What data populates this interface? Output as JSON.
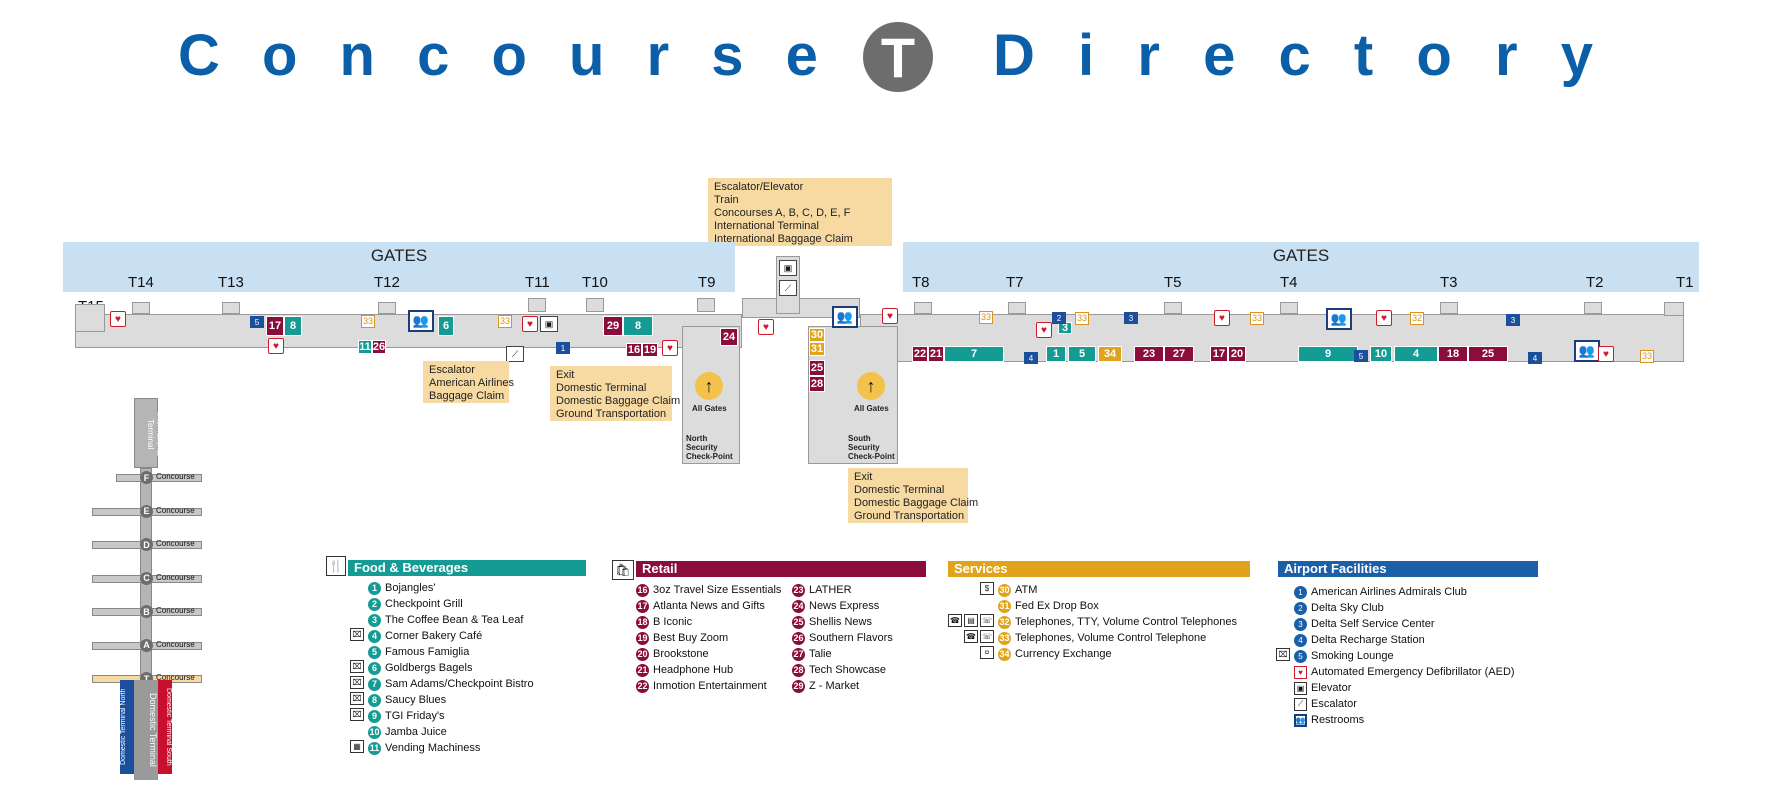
{
  "title": {
    "left": "Concourse",
    "badge": "T",
    "right": "Directory"
  },
  "gates": {
    "left_label": "GATES",
    "right_label": "GATES",
    "numbers": [
      "T15",
      "T14",
      "T13",
      "T12",
      "T11",
      "T10",
      "T9",
      "T8",
      "T7",
      "T5",
      "T4",
      "T3",
      "T2",
      "T1"
    ]
  },
  "info_boxes": {
    "top": [
      "Escalator/Elevator",
      "Train",
      "Concourses A, B, C, D, E, F",
      "International Terminal",
      "International Baggage Claim"
    ],
    "escalator": [
      "Escalator",
      "American Airlines",
      "Baggage Claim"
    ],
    "exit_north": [
      "Exit",
      "Domestic Terminal",
      "Domestic Baggage Claim",
      "Ground Transportation"
    ],
    "exit_south": [
      "Exit",
      "Domestic Terminal",
      "Domestic Baggage Claim",
      "Ground Transportation"
    ]
  },
  "security": {
    "north": [
      "North",
      "Security",
      "Check-Point"
    ],
    "south": [
      "South",
      "Security",
      "Check-Point"
    ],
    "all_gates": "All Gates"
  },
  "mini_map": {
    "international": "International Terminal",
    "concourses": [
      {
        "letter": "F",
        "label": "Concourse"
      },
      {
        "letter": "E",
        "label": "Concourse"
      },
      {
        "letter": "D",
        "label": "Concourse"
      },
      {
        "letter": "C",
        "label": "Concourse"
      },
      {
        "letter": "B",
        "label": "Concourse"
      },
      {
        "letter": "A",
        "label": "Concourse"
      },
      {
        "letter": "T",
        "label": "Concourse"
      }
    ],
    "north": "Domestic Terminal North",
    "center": "Domestic Terminal",
    "south": "Domestic Terminal South"
  },
  "legend": {
    "food": {
      "title": "Food & Beverages",
      "color": "#139b94",
      "items": [
        {
          "n": "1",
          "label": "Bojangles'"
        },
        {
          "n": "2",
          "label": "Checkpoint Grill"
        },
        {
          "n": "3",
          "label": "The Coffee Bean & Tea Leaf"
        },
        {
          "n": "4",
          "label": "Corner Bakery Café"
        },
        {
          "n": "5",
          "label": "Famous Famiglia"
        },
        {
          "n": "6",
          "label": "Goldbergs Bagels"
        },
        {
          "n": "7",
          "label": "Sam Adams/Checkpoint Bistro"
        },
        {
          "n": "8",
          "label": "Saucy Blues"
        },
        {
          "n": "9",
          "label": "TGI Friday's"
        },
        {
          "n": "10",
          "label": "Jamba Juice"
        },
        {
          "n": "11",
          "label": "Vending Machiness"
        }
      ]
    },
    "retail": {
      "title": "Retail",
      "color": "#8b0d3b",
      "col1": [
        {
          "n": "16",
          "label": "3oz Travel Size Essentials"
        },
        {
          "n": "17",
          "label": "Atlanta News and Gifts"
        },
        {
          "n": "18",
          "label": "B Iconic"
        },
        {
          "n": "19",
          "label": "Best Buy Zoom"
        },
        {
          "n": "20",
          "label": "Brookstone"
        },
        {
          "n": "21",
          "label": "Headphone Hub"
        },
        {
          "n": "22",
          "label": "Inmotion Entertainment"
        }
      ],
      "col2": [
        {
          "n": "23",
          "label": "LATHER"
        },
        {
          "n": "24",
          "label": "News Express"
        },
        {
          "n": "25",
          "label": "Shellis News"
        },
        {
          "n": "26",
          "label": "Southern Flavors"
        },
        {
          "n": "27",
          "label": "Talie"
        },
        {
          "n": "28",
          "label": "Tech Showcase"
        },
        {
          "n": "29",
          "label": "Z - Market"
        }
      ]
    },
    "services": {
      "title": "Services",
      "color": "#e0a41c",
      "items": [
        {
          "n": "30",
          "label": "ATM"
        },
        {
          "n": "31",
          "label": "Fed Ex Drop Box"
        },
        {
          "n": "32",
          "label": "Telephones, TTY, Volume Control Telephones"
        },
        {
          "n": "33",
          "label": "Telephones, Volume Control Telephone"
        },
        {
          "n": "34",
          "label": "Currency Exchange"
        }
      ]
    },
    "facilities": {
      "title": "Airport Facilities",
      "color": "#1b5fa8",
      "items": [
        {
          "n": "1",
          "label": "American Airlines Admirals Club",
          "icon": "star-icon"
        },
        {
          "n": "2",
          "label": "Delta Sky Club",
          "icon": "star-icon"
        },
        {
          "n": "3",
          "label": "Delta Self Service Center",
          "icon": "star-icon"
        },
        {
          "n": "4",
          "label": "Delta Recharge Station",
          "icon": "star-icon"
        },
        {
          "n": "5",
          "label": "Smoking Lounge",
          "icon": "star-icon"
        },
        {
          "n": "",
          "label": "Automated Emergency Defibrillator (AED)",
          "icon": "aed-icon"
        },
        {
          "n": "",
          "label": "Elevator",
          "icon": "elevator-icon"
        },
        {
          "n": "",
          "label": "Escalator",
          "icon": "escalator-icon"
        },
        {
          "n": "",
          "label": "Restrooms",
          "icon": "restroom-icon"
        }
      ]
    }
  },
  "map_units": [
    {
      "n": "17",
      "c": "maroon"
    },
    {
      "n": "8",
      "c": "teal"
    },
    {
      "n": "6",
      "c": "teal"
    },
    {
      "n": "11",
      "c": "teal"
    },
    {
      "n": "26",
      "c": "maroon"
    },
    {
      "n": "29",
      "c": "maroon"
    },
    {
      "n": "8",
      "c": "teal"
    },
    {
      "n": "16",
      "c": "maroon"
    },
    {
      "n": "19",
      "c": "maroon"
    },
    {
      "n": "24",
      "c": "maroon"
    },
    {
      "n": "30",
      "c": "amber"
    },
    {
      "n": "31",
      "c": "amber"
    },
    {
      "n": "25",
      "c": "maroon"
    },
    {
      "n": "28",
      "c": "maroon"
    },
    {
      "n": "22",
      "c": "maroon"
    },
    {
      "n": "21",
      "c": "maroon"
    },
    {
      "n": "7",
      "c": "teal"
    },
    {
      "n": "1",
      "c": "teal"
    },
    {
      "n": "5",
      "c": "teal"
    },
    {
      "n": "34",
      "c": "amber"
    },
    {
      "n": "23",
      "c": "maroon"
    },
    {
      "n": "27",
      "c": "maroon"
    },
    {
      "n": "17",
      "c": "maroon"
    },
    {
      "n": "20",
      "c": "maroon"
    },
    {
      "n": "3",
      "c": "teal"
    },
    {
      "n": "9",
      "c": "teal"
    },
    {
      "n": "10",
      "c": "teal"
    },
    {
      "n": "4",
      "c": "teal"
    },
    {
      "n": "18",
      "c": "maroon"
    },
    {
      "n": "25",
      "c": "maroon"
    }
  ],
  "phone_tag": "33",
  "phone_tag_32": "32"
}
